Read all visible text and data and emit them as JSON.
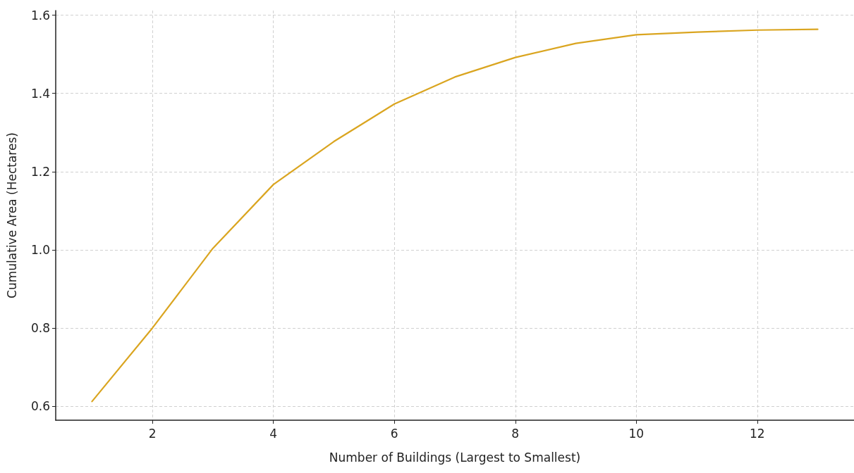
{
  "chart_data": {
    "type": "line",
    "xlabel": "Number of Buildings (Largest to Smallest)",
    "ylabel": "Cumulative Area (Hectares)",
    "x": [
      1,
      2,
      3,
      4,
      5,
      6,
      7,
      8,
      9,
      10,
      11,
      12,
      13
    ],
    "series": [
      {
        "color": "#daa520",
        "values": [
          0.612,
          0.8,
          1.004,
          1.167,
          1.277,
          1.373,
          1.442,
          1.492,
          1.528,
          1.55,
          1.557,
          1.562,
          1.564
        ]
      }
    ],
    "xlim": [
      0.4,
      13.6
    ],
    "xticks": [
      2,
      4,
      6,
      8,
      10,
      12
    ],
    "ylim": [
      0.564,
      1.612
    ],
    "yticks": [
      0.6,
      0.8,
      {
        "value": 1,
        "label": "1.0"
      },
      1.2,
      1.4,
      1.6
    ],
    "grid": true,
    "marker": "none",
    "line_style": "solid"
  }
}
